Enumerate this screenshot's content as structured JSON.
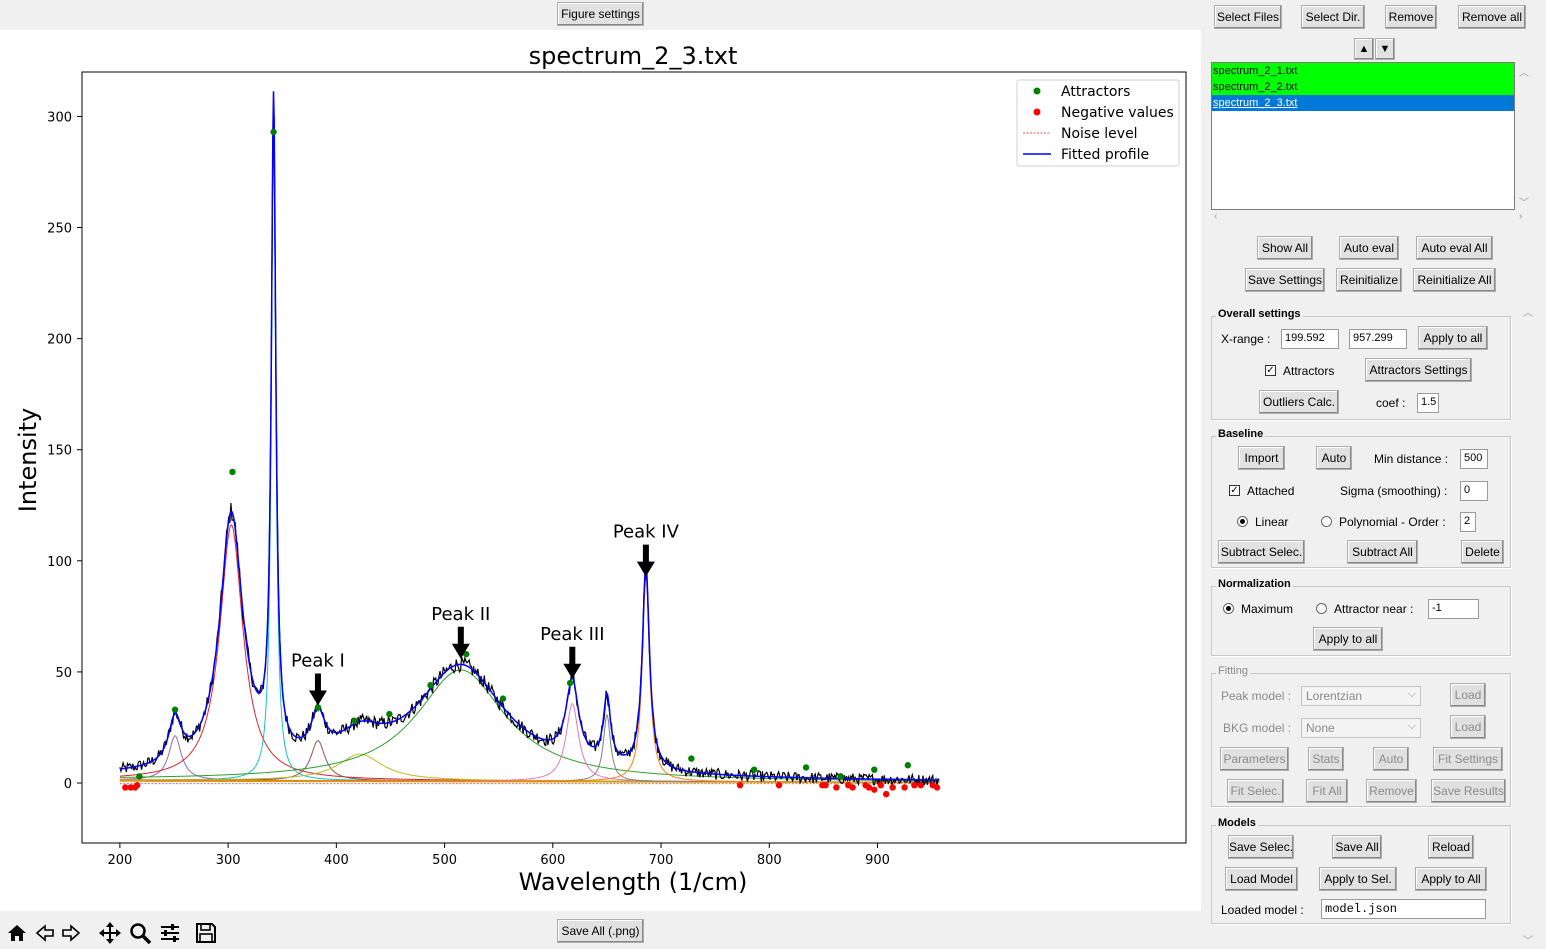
{
  "top": {
    "figure_settings": "Figure settings",
    "save_all_png": "Save All (.png)"
  },
  "chart_data": {
    "type": "line",
    "title": "spectrum_2_3.txt",
    "xlabel": "Wavelength (1/cm)",
    "ylabel": "Intensity",
    "xlim": [
      165,
      1185
    ],
    "ylim": [
      -27,
      320
    ],
    "xticks": [
      200,
      300,
      400,
      500,
      600,
      700,
      800,
      900
    ],
    "yticks": [
      0,
      50,
      100,
      150,
      200,
      250,
      300
    ],
    "legend": {
      "position": "top-right",
      "entries": [
        {
          "label": "Attractors",
          "color": "#008000",
          "style": "dot"
        },
        {
          "label": "Negative values",
          "color": "#ff0000",
          "style": "dot"
        },
        {
          "label": "Noise level",
          "color": "#e05050",
          "style": "dotted"
        },
        {
          "label": "Fitted profile",
          "color": "#0000ff",
          "style": "line"
        }
      ]
    },
    "peaks": [
      {
        "name": "p1",
        "color": "#9467bd",
        "center": 251,
        "height": 20,
        "hwhm": 7
      },
      {
        "name": "p2",
        "color": "#d62728",
        "center": 303,
        "height": 115,
        "hwhm": 13
      },
      {
        "name": "p3",
        "color": "#17becf",
        "center": 342,
        "height": 292,
        "hwhm": 2.5
      },
      {
        "name": "p4",
        "color": "#8c564b",
        "center": 383,
        "height": 18,
        "hwhm": 8
      },
      {
        "name": "p5",
        "color": "#bcbd22",
        "center": 422,
        "height": 12,
        "hwhm": 25
      },
      {
        "name": "p6",
        "color": "#2ca02c",
        "center": 515,
        "height": 50,
        "hwhm": 50
      },
      {
        "name": "p7",
        "color": "#e377c2",
        "center": 618,
        "height": 35,
        "hwhm": 7
      },
      {
        "name": "p8",
        "color": "#7f7f7f",
        "center": 650,
        "height": 30,
        "hwhm": 4
      },
      {
        "name": "p9",
        "color": "#ff7f0e",
        "center": 686,
        "height": 92,
        "hwhm": 4
      }
    ],
    "attractors": [
      [
        218,
        3
      ],
      [
        251,
        33
      ],
      [
        304,
        140
      ],
      [
        342,
        293
      ],
      [
        383,
        34
      ],
      [
        417,
        28
      ],
      [
        449,
        31
      ],
      [
        487,
        44
      ],
      [
        520,
        58
      ],
      [
        554,
        38
      ],
      [
        616,
        45
      ],
      [
        728,
        11
      ],
      [
        786,
        6
      ],
      [
        834,
        7
      ],
      [
        866,
        3
      ],
      [
        897,
        6
      ],
      [
        928,
        8
      ]
    ],
    "negative_values": [
      [
        205,
        -2
      ],
      [
        210,
        -2
      ],
      [
        214,
        -2
      ],
      [
        216,
        -1
      ],
      [
        773,
        -1
      ],
      [
        809,
        -1
      ],
      [
        849,
        -1
      ],
      [
        852,
        -1
      ],
      [
        862,
        -2
      ],
      [
        873,
        -1
      ],
      [
        877,
        -2
      ],
      [
        889,
        -1
      ],
      [
        892,
        -2
      ],
      [
        897,
        -3
      ],
      [
        903,
        -1
      ],
      [
        908,
        -5
      ],
      [
        914,
        -2
      ],
      [
        925,
        -2
      ],
      [
        934,
        -1
      ],
      [
        940,
        -1
      ],
      [
        951,
        -1
      ],
      [
        955,
        -2
      ]
    ],
    "noise_level": 1.5,
    "annotations": [
      {
        "text": "Peak I",
        "x": 383,
        "y": 34
      },
      {
        "text": "Peak II",
        "x": 515,
        "y": 55
      },
      {
        "text": "Peak III",
        "x": 618,
        "y": 46
      },
      {
        "text": "Peak IV",
        "x": 686,
        "y": 92
      }
    ]
  },
  "files": {
    "select_files": "Select Files",
    "select_dir": "Select Dir.",
    "remove": "Remove",
    "remove_all": "Remove all",
    "up": "▲",
    "down": "▼",
    "items": [
      "spectrum_2_1.txt",
      "spectrum_2_2.txt",
      "spectrum_2_3.txt"
    ],
    "item_colors": [
      "#00ff00",
      "#00ff00",
      "#0078d7"
    ]
  },
  "actions": {
    "show_all": "Show All",
    "auto_eval": "Auto eval",
    "auto_eval_all": "Auto eval All",
    "save_settings": "Save Settings",
    "reinitialize": "Reinitialize",
    "reinitialize_all": "Reinitialize All"
  },
  "overall": {
    "title": "Overall settings",
    "xrange_label": "X-range :",
    "xmin": "199.592",
    "xmax": "957.299",
    "apply_to_all": "Apply to all",
    "attractors_label": "Attractors",
    "attractors_checked": "✓",
    "attractors_settings": "Attractors Settings",
    "outliers_calc": "Outliers Calc.",
    "coef_label": "coef :",
    "coef": "1.5"
  },
  "baseline": {
    "title": "Baseline",
    "import": "Import",
    "auto": "Auto",
    "min_distance_label": "Min distance :",
    "min_distance": "500",
    "attached_label": "Attached",
    "attached_checked": "✓",
    "sigma_label": "Sigma (smoothing) :",
    "sigma": "0",
    "linear_label": "Linear",
    "polynomial_label": "Polynomial - Order :",
    "order": "2",
    "subtract_selec": "Subtract Selec.",
    "subtract_all": "Subtract All",
    "delete": "Delete"
  },
  "normalization": {
    "title": "Normalization",
    "maximum_label": "Maximum",
    "attractor_near_label": "Attractor near :",
    "attractor_near": "-1",
    "apply_to_all": "Apply to all"
  },
  "fitting": {
    "title": "Fitting",
    "peak_model_label": "Peak model :",
    "peak_model": "Lorentzian",
    "load1": "Load",
    "bkg_model_label": "BKG model :",
    "bkg_model": "None",
    "load2": "Load",
    "parameters": "Parameters",
    "stats": "Stats",
    "auto": "Auto",
    "fit_settings": "Fit Settings",
    "fit_selec": "Fit Selec.",
    "fit_all": "Fit All",
    "remove": "Remove",
    "save_results": "Save Results"
  },
  "models": {
    "title": "Models",
    "save_selec": "Save Selec.",
    "save_all": "Save All",
    "reload": "Reload",
    "load_model": "Load Model",
    "apply_to_sel": "Apply to Sel.",
    "apply_to_all": "Apply to All",
    "loaded_model_label": "Loaded model :",
    "loaded_model": "model.json"
  },
  "toolbar": {
    "icons": [
      "home-icon",
      "back-icon",
      "forward-icon",
      "pan-icon",
      "zoom-icon",
      "configure-icon",
      "save-icon"
    ]
  }
}
